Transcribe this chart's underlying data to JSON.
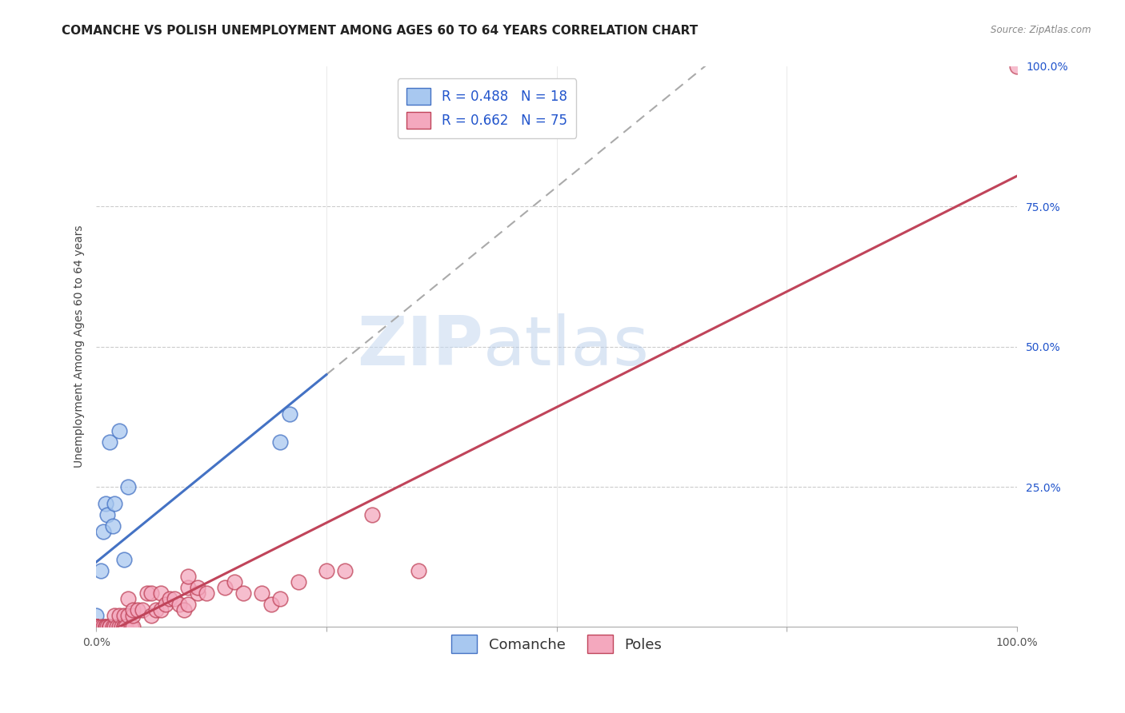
{
  "title": "COMANCHE VS POLISH UNEMPLOYMENT AMONG AGES 60 TO 64 YEARS CORRELATION CHART",
  "source": "Source: ZipAtlas.com",
  "ylabel": "Unemployment Among Ages 60 to 64 years",
  "xlim": [
    0,
    1
  ],
  "ylim": [
    0,
    1
  ],
  "background_color": "#ffffff",
  "comanche_color": "#a8c8f0",
  "poles_color": "#f4a8be",
  "comanche_line_color": "#4472c4",
  "poles_line_color": "#c0445a",
  "comanche_R": 0.488,
  "comanche_N": 18,
  "poles_R": 0.662,
  "poles_N": 75,
  "comanche_x": [
    0.0,
    0.0,
    0.0,
    0.0,
    0.0,
    0.0,
    0.005,
    0.008,
    0.01,
    0.012,
    0.015,
    0.018,
    0.02,
    0.025,
    0.03,
    0.035,
    0.2,
    0.21
  ],
  "comanche_y": [
    0.0,
    0.0,
    0.0,
    0.0,
    0.0,
    0.02,
    0.1,
    0.17,
    0.22,
    0.2,
    0.33,
    0.18,
    0.22,
    0.35,
    0.12,
    0.25,
    0.33,
    0.38
  ],
  "poles_x": [
    0.0,
    0.0,
    0.0,
    0.0,
    0.0,
    0.0,
    0.0,
    0.0,
    0.0,
    0.0,
    0.0,
    0.0,
    0.0,
    0.0,
    0.0,
    0.0,
    0.0,
    0.0,
    0.0,
    0.0,
    0.005,
    0.008,
    0.01,
    0.01,
    0.012,
    0.015,
    0.015,
    0.018,
    0.02,
    0.02,
    0.022,
    0.025,
    0.025,
    0.028,
    0.03,
    0.03,
    0.03,
    0.032,
    0.035,
    0.035,
    0.038,
    0.04,
    0.04,
    0.04,
    0.045,
    0.05,
    0.055,
    0.06,
    0.06,
    0.065,
    0.07,
    0.07,
    0.075,
    0.08,
    0.085,
    0.09,
    0.095,
    0.1,
    0.1,
    0.1,
    0.11,
    0.11,
    0.12,
    0.14,
    0.15,
    0.16,
    0.18,
    0.19,
    0.2,
    0.22,
    0.25,
    0.27,
    0.3,
    0.35,
    1.0
  ],
  "poles_y": [
    0.0,
    0.0,
    0.0,
    0.0,
    0.0,
    0.0,
    0.0,
    0.0,
    0.0,
    0.0,
    0.0,
    0.0,
    0.0,
    0.0,
    0.0,
    0.0,
    0.0,
    0.0,
    0.0,
    0.0,
    0.0,
    0.0,
    0.0,
    0.0,
    0.0,
    0.0,
    0.0,
    0.0,
    0.0,
    0.02,
    0.0,
    0.0,
    0.02,
    0.0,
    0.0,
    0.0,
    0.02,
    0.0,
    0.02,
    0.05,
    0.0,
    0.0,
    0.02,
    0.03,
    0.03,
    0.03,
    0.06,
    0.06,
    0.02,
    0.03,
    0.03,
    0.06,
    0.04,
    0.05,
    0.05,
    0.04,
    0.03,
    0.04,
    0.07,
    0.09,
    0.06,
    0.07,
    0.06,
    0.07,
    0.08,
    0.06,
    0.06,
    0.04,
    0.05,
    0.08,
    0.1,
    0.1,
    0.2,
    0.1,
    1.0
  ],
  "title_fontsize": 11,
  "axis_fontsize": 10,
  "tick_fontsize": 10,
  "legend_fontsize": 12,
  "r_n_color": "#2255cc",
  "tick_color": "#2255cc"
}
